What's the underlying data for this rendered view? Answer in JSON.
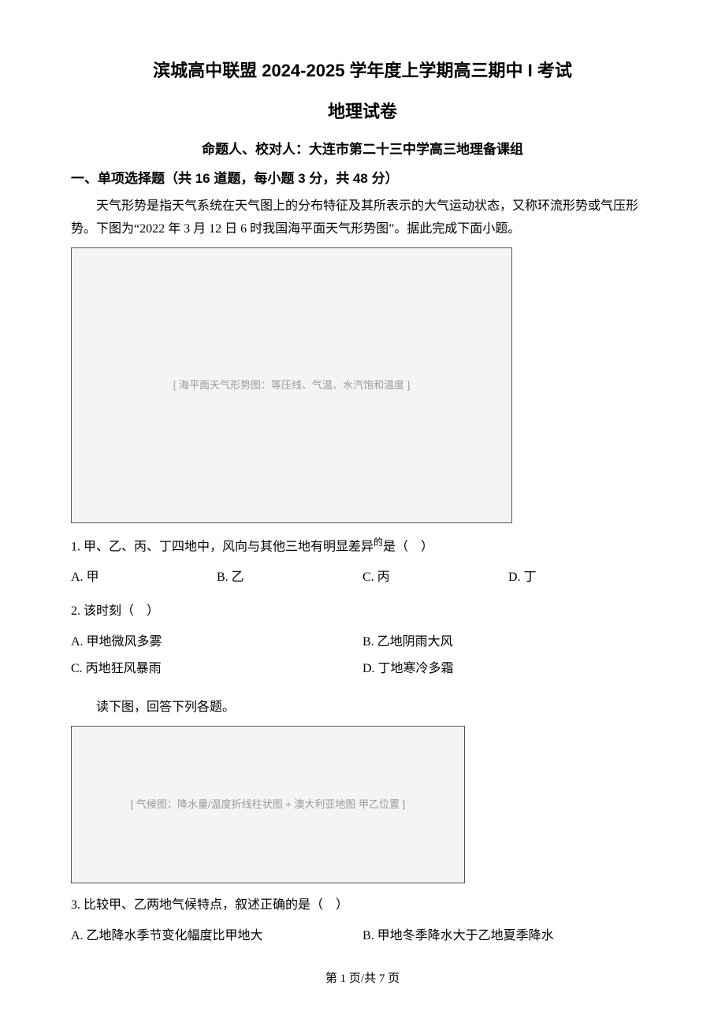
{
  "header": {
    "title_main": "滨城高中联盟 2024-2025 学年度上学期高三期中 I 考试",
    "title_sub": "地理试卷",
    "authors": "命题人、校对人：大连市第二十三中学高三地理备课组"
  },
  "section1": {
    "heading": "一、单项选择题（共 16 道题，每小题 3 分，共 48 分）",
    "passage_a": "天气形势是指天气系统在天气图上的分布特征及其所表示的大气运动状态，又称环流形势或气压形势。下图为“2022 年 3 月 12 日 6 时我国海平面天气形势图”。据此完成下面小题。",
    "figure1_alt": "[ 海平面天气形势图：等压线、气温、水汽饱和温度 ]",
    "q1": {
      "stem_prefix": "1. 甲、乙、丙、丁四地中，风向与其他三地有明显差异",
      "stem_sup": "的",
      "stem_suffix": "是（　）",
      "A": "A. 甲",
      "B": "B. 乙",
      "C": "C. 丙",
      "D": "D. 丁"
    },
    "q2": {
      "stem": "2. 该时刻（　）",
      "A": "A. 甲地微风多雾",
      "B": "B. 乙地阴雨大风",
      "C": "C. 丙地狂风暴雨",
      "D": "D. 丁地寒冷多霜"
    },
    "passage_b": "读下图，回答下列各题。",
    "figure2_alt": "[ 气候图：降水量/温度折线柱状图 + 澳大利亚地图 甲乙位置 ]",
    "q3": {
      "stem": "3. 比较甲、乙两地气候特点，叙述正确的是（　）",
      "A": "A. 乙地降水季节变化幅度比甲地大",
      "B": "B. 甲地冬季降水大于乙地夏季降水"
    }
  },
  "footer": {
    "page": "第 1 页/共 7 页"
  }
}
